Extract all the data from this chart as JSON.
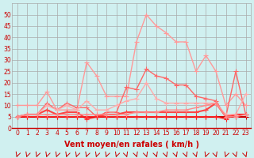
{
  "xlabel": "Vent moyen/en rafales ( km/h )",
  "x": [
    0,
    1,
    2,
    3,
    4,
    5,
    6,
    7,
    8,
    9,
    10,
    11,
    12,
    13,
    14,
    15,
    16,
    17,
    18,
    19,
    20,
    21,
    22,
    23
  ],
  "series": [
    {
      "color": "#ff9999",
      "linewidth": 1.0,
      "marker": "+",
      "markersize": 4,
      "values": [
        10,
        10,
        10,
        16,
        8,
        8,
        8,
        29,
        23,
        14,
        14,
        14,
        38,
        50,
        45,
        42,
        38,
        38,
        25,
        32,
        25,
        10,
        15,
        10
      ]
    },
    {
      "color": "#ff6666",
      "linewidth": 1.0,
      "marker": "+",
      "markersize": 4,
      "values": [
        5,
        6,
        6,
        11,
        8,
        11,
        9,
        9,
        5,
        7,
        7,
        18,
        17,
        26,
        23,
        22,
        19,
        19,
        14,
        13,
        12,
        5,
        25,
        6
      ]
    },
    {
      "color": "#ff4444",
      "linewidth": 1.5,
      "marker": "+",
      "markersize": 4,
      "values": [
        5,
        6,
        6,
        8,
        6,
        7,
        7,
        4,
        5,
        6,
        6,
        7,
        7,
        7,
        7,
        7,
        7,
        7,
        7,
        8,
        11,
        5,
        6,
        6
      ]
    },
    {
      "color": "#cc0000",
      "linewidth": 1.5,
      "marker": "+",
      "markersize": 4,
      "values": [
        5,
        5,
        5,
        5,
        5,
        5,
        5,
        5,
        5,
        5,
        5,
        5,
        5,
        5,
        5,
        5,
        5,
        5,
        5,
        5,
        5,
        5,
        5,
        5
      ]
    },
    {
      "color": "#ff2222",
      "linewidth": 1.0,
      "marker": "+",
      "markersize": 4,
      "values": [
        5,
        5,
        5,
        5,
        5,
        5,
        5,
        5,
        5,
        5,
        5,
        5,
        5,
        5,
        5,
        5,
        5,
        5,
        5,
        5,
        5,
        4,
        6,
        6
      ]
    },
    {
      "color": "#ffaaaa",
      "linewidth": 1.0,
      "marker": "+",
      "markersize": 4,
      "values": [
        5,
        6,
        6,
        10,
        8,
        10,
        8,
        12,
        8,
        8,
        10,
        12,
        13,
        20,
        13,
        11,
        11,
        11,
        11,
        11,
        11,
        6,
        6,
        15
      ]
    },
    {
      "color": "#ff8888",
      "linewidth": 1.0,
      "marker": "+",
      "markersize": 4,
      "values": [
        5,
        6,
        6,
        6,
        6,
        6,
        6,
        6,
        6,
        6,
        6,
        6,
        7,
        7,
        7,
        8,
        8,
        8,
        9,
        10,
        11,
        5,
        5,
        6
      ]
    }
  ],
  "ylim": [
    0,
    55
  ],
  "yticks": [
    0,
    5,
    10,
    15,
    20,
    25,
    30,
    35,
    40,
    45,
    50
  ],
  "bg_color": "#d0f0f0",
  "grid_color": "#aaaaaa",
  "xlabel_color": "#cc0000",
  "tick_color": "#cc0000"
}
